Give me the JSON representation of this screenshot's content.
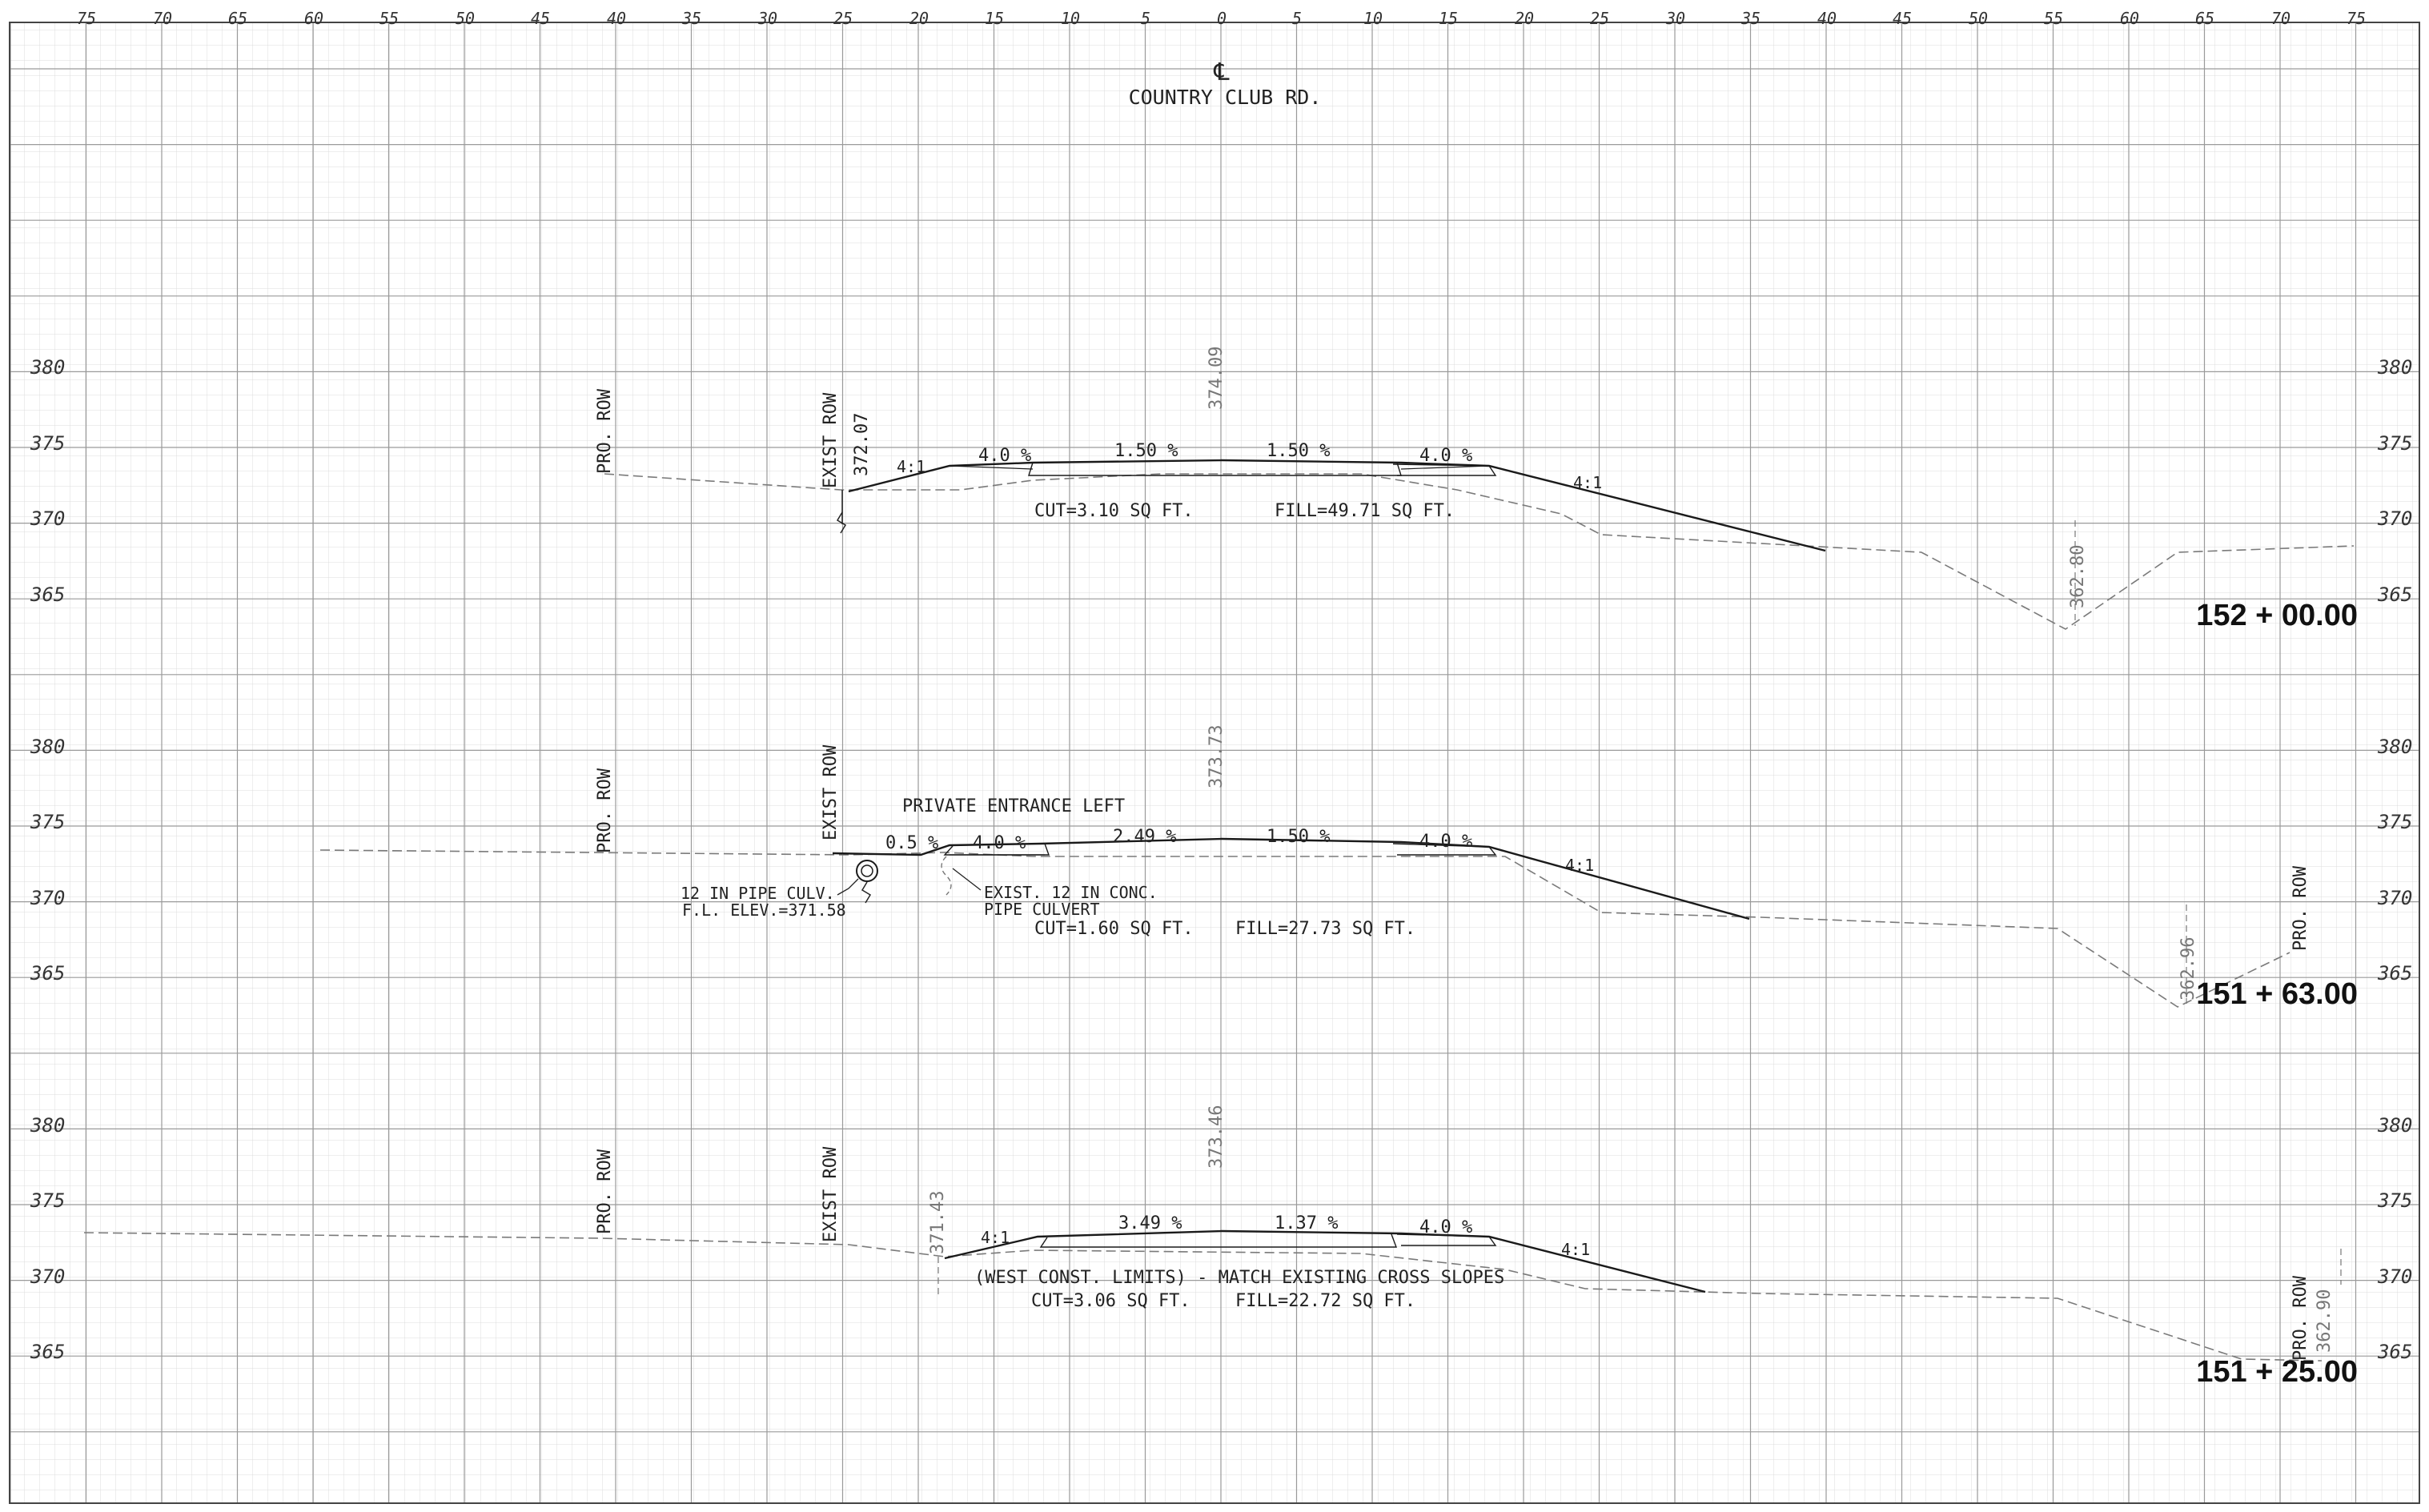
{
  "title": {
    "centerline_symbol": "℄",
    "road_name": "COUNTRY CLUB RD."
  },
  "scales": {
    "offset_ticks": [
      "75",
      "70",
      "65",
      "60",
      "55",
      "50",
      "45",
      "40",
      "35",
      "30",
      "25",
      "20",
      "15",
      "10",
      "5",
      "0",
      "5",
      "10",
      "15",
      "20",
      "25",
      "30",
      "35",
      "40",
      "45",
      "50",
      "55",
      "60",
      "65",
      "70",
      "75"
    ],
    "elev_ticks": [
      "380",
      "375",
      "370",
      "365"
    ]
  },
  "sections": [
    {
      "station": "152 + 00.00",
      "cl_elev": "374.09",
      "pro_row": "PRO. ROW",
      "exist_row": "EXIST ROW",
      "left_elev": "372.07",
      "right_elev": "362.80",
      "left_slope_ratio": "4:1",
      "right_slope_ratio": "4:1",
      "slopes": [
        "4.0 %",
        "1.50 %",
        "1.50 %",
        "4.0 %"
      ],
      "cut": "CUT=3.10 SQ FT.",
      "fill": "FILL=49.71 SQ FT."
    },
    {
      "station": "151 + 63.00",
      "cl_elev": "373.73",
      "pro_row": "PRO. ROW",
      "exist_row": "EXIST ROW",
      "right_pro_row": "PRO. ROW",
      "right_elev": "362.96",
      "entrance_label": "PRIVATE ENTRANCE LEFT",
      "slopes": [
        "0.5 %",
        "4.0 %",
        "2.49 %",
        "1.50 %",
        "4.0 %"
      ],
      "right_slope_ratio": "4:1",
      "culvert_label_1": "12 IN PIPE CULV.",
      "culvert_label_2": "F.L. ELEV.=371.58",
      "exist_culvert_1": "EXIST. 12 IN CONC.",
      "exist_culvert_2": "PIPE CULVERT",
      "cut": "CUT=1.60 SQ FT.",
      "fill": "FILL=27.73 SQ FT."
    },
    {
      "station": "151 + 25.00",
      "cl_elev": "373.46",
      "pro_row": "PRO. ROW",
      "exist_row": "EXIST ROW",
      "right_pro_row": "PRO. ROW",
      "left_elev": "371.43",
      "right_elev": "362.90",
      "left_slope_ratio": "4:1",
      "right_slope_ratio": "4:1",
      "slopes": [
        "3.49 %",
        "1.37 %",
        "4.0 %"
      ],
      "note": "(WEST CONST. LIMITS) - MATCH EXISTING CROSS SLOPES",
      "cut": "CUT=3.06 SQ FT.",
      "fill": "FILL=22.72 SQ FT."
    }
  ],
  "colors": {
    "grid_fine": "#d9d9d9",
    "grid_major": "#9a9a9a",
    "line": "#1a1a1a",
    "existing": "#7a7a7a"
  }
}
